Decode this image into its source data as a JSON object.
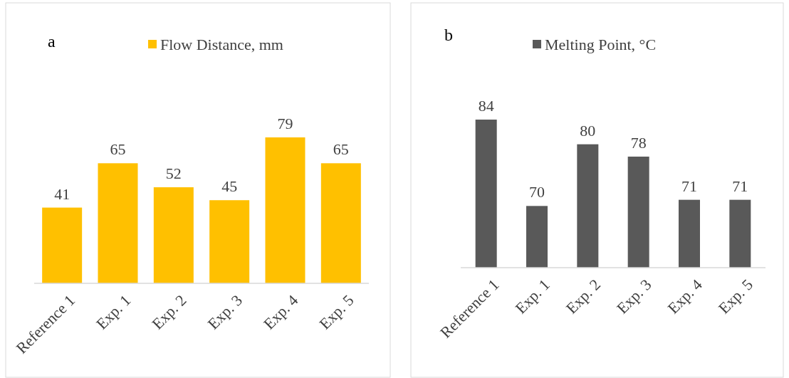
{
  "chart_data": [
    {
      "type": "bar",
      "title": "a",
      "categories": [
        "Reference 1",
        "Exp. 1",
        "Exp. 2",
        "Exp. 3",
        "Exp. 4",
        "Exp. 5"
      ],
      "series": [
        {
          "name": "Flow Distance, mm",
          "color": "#ffc000",
          "values": [
            41,
            65,
            52,
            45,
            79,
            65
          ]
        }
      ],
      "tick_labels": "x",
      "data_labels": true,
      "legend": "top"
    },
    {
      "type": "bar",
      "title": "b",
      "categories": [
        "Reference 1",
        "Exp. 1",
        "Exp. 2",
        "Exp. 3",
        "Exp. 4",
        "Exp. 5"
      ],
      "series": [
        {
          "name": "Melting Point, °C",
          "color": "#595959",
          "values": [
            84,
            70,
            80,
            78,
            71,
            71
          ]
        }
      ],
      "ylim": [
        60,
        84
      ],
      "tick_labels": "x",
      "data_labels": true,
      "legend": "top"
    }
  ]
}
